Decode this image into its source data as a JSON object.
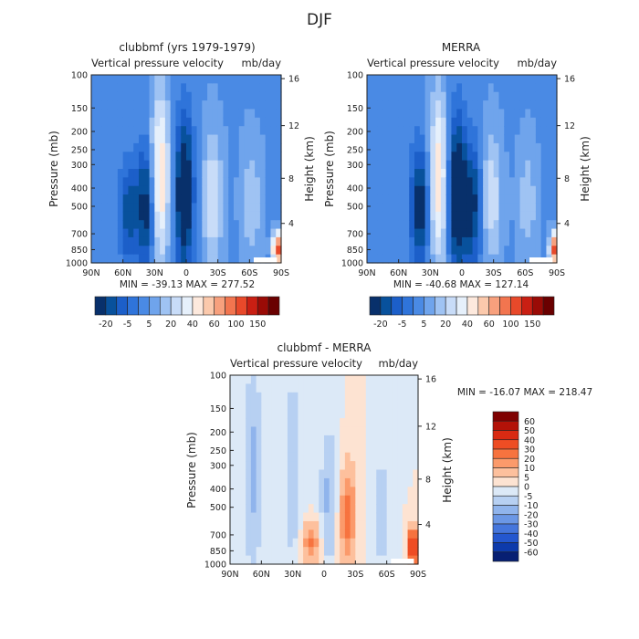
{
  "figure": {
    "title": "DJF"
  },
  "chart_data": [
    {
      "type": "heatmap",
      "id": "model",
      "title": "clubbmf (yrs 1979-1979)",
      "subtitle_left": "Vertical pressure velocity",
      "subtitle_right": "mb/day",
      "ylabel": "Pressure (mb)",
      "y2label": "Height (km)",
      "x_ticks": [
        "90N",
        "60N",
        "30N",
        "0",
        "30S",
        "60S",
        "90S"
      ],
      "x_range": [
        90,
        -90
      ],
      "y_ticks": [
        "100",
        "150",
        "200",
        "250",
        "300",
        "400",
        "500",
        "700",
        "850",
        "1000"
      ],
      "y_scale": "log",
      "y_range": [
        100,
        1000
      ],
      "y2_ticks": [
        "16",
        "12",
        "8",
        "4"
      ],
      "stats": "MIN = -39.13   MAX = 277.52",
      "colorbar": {
        "orientation": "horizontal",
        "labels": [
          "-20",
          "-5",
          "5",
          "20",
          "40",
          "60",
          "100",
          "150"
        ],
        "colors": [
          "#08306b",
          "#08519c",
          "#1c5fc9",
          "#2f74da",
          "#4a8ae4",
          "#6fa4ec",
          "#9fc3f3",
          "#c8dcf8",
          "#e6f0fb",
          "#fde9dd",
          "#fbc9ac",
          "#f7a07d",
          "#f2754f",
          "#e8492a",
          "#c91f13",
          "#9a0b06",
          "#6a0000"
        ]
      },
      "features": [
        {
          "kind": "upward-core",
          "lat": 2,
          "p_top": 180,
          "p_bot": 1000,
          "strength": -1.0
        },
        {
          "kind": "upward-core",
          "lat": 38,
          "p_top": 250,
          "p_bot": 1000,
          "strength": -0.8
        },
        {
          "kind": "upward-core",
          "lat": 55,
          "p_top": 300,
          "p_bot": 1000,
          "strength": -0.55
        },
        {
          "kind": "subsidence",
          "lat": 25,
          "p_top": 140,
          "p_bot": 900,
          "strength": 0.9
        },
        {
          "kind": "subsidence",
          "lat": -25,
          "p_top": 220,
          "p_bot": 900,
          "strength": 0.55
        },
        {
          "kind": "subsidence",
          "lat": -62,
          "p_top": 250,
          "p_bot": 900,
          "strength": 0.35
        },
        {
          "kind": "surface-max",
          "lat": -86,
          "p_top": 700,
          "p_bot": 1000,
          "strength": 1.6
        }
      ]
    },
    {
      "type": "heatmap",
      "id": "obs",
      "title": "MERRA",
      "subtitle_left": "Vertical pressure velocity",
      "subtitle_right": "mb/day",
      "ylabel": "Pressure (mb)",
      "y2label": "Height (km)",
      "x_ticks": [
        "90N",
        "60N",
        "30N",
        "0",
        "30S",
        "60S",
        "90S"
      ],
      "x_range": [
        90,
        -90
      ],
      "y_ticks": [
        "100",
        "150",
        "200",
        "250",
        "300",
        "400",
        "500",
        "700",
        "850",
        "1000"
      ],
      "y_scale": "log",
      "y_range": [
        100,
        1000
      ],
      "y2_ticks": [
        "16",
        "12",
        "8",
        "4"
      ],
      "stats": "MIN = -40.68   MAX = 127.14",
      "colorbar": {
        "orientation": "horizontal",
        "labels": [
          "-20",
          "-5",
          "5",
          "20",
          "40",
          "60",
          "100",
          "150"
        ],
        "colors": [
          "#08306b",
          "#08519c",
          "#1c5fc9",
          "#2f74da",
          "#4a8ae4",
          "#6fa4ec",
          "#9fc3f3",
          "#c8dcf8",
          "#e6f0fb",
          "#fde9dd",
          "#fbc9ac",
          "#f7a07d",
          "#f2754f",
          "#e8492a",
          "#c91f13",
          "#9a0b06",
          "#6a0000"
        ]
      },
      "features": [
        {
          "kind": "upward-core",
          "lat": 5,
          "p_top": 180,
          "p_bot": 1000,
          "strength": -1.0
        },
        {
          "kind": "upward-core",
          "lat": 40,
          "p_top": 250,
          "p_bot": 1000,
          "strength": -0.8
        },
        {
          "kind": "upward-core",
          "lat": -10,
          "p_top": 250,
          "p_bot": 1000,
          "strength": -0.7
        },
        {
          "kind": "subsidence",
          "lat": 22,
          "p_top": 140,
          "p_bot": 900,
          "strength": 0.85
        },
        {
          "kind": "subsidence",
          "lat": -28,
          "p_top": 220,
          "p_bot": 900,
          "strength": 0.5
        },
        {
          "kind": "subsidence",
          "lat": -62,
          "p_top": 250,
          "p_bot": 900,
          "strength": 0.3
        },
        {
          "kind": "surface-max",
          "lat": -87,
          "p_top": 700,
          "p_bot": 1000,
          "strength": 1.4
        }
      ]
    },
    {
      "type": "heatmap",
      "id": "diff",
      "title": "clubbmf - MERRA",
      "subtitle_left": "Vertical pressure velocity",
      "subtitle_right": "mb/day",
      "ylabel": "Pressure (mb)",
      "y2label": "Height (km)",
      "x_ticks": [
        "90N",
        "60N",
        "30N",
        "0",
        "30S",
        "60S",
        "90S"
      ],
      "x_range": [
        90,
        -90
      ],
      "y_ticks": [
        "100",
        "150",
        "200",
        "250",
        "300",
        "400",
        "500",
        "700",
        "850",
        "1000"
      ],
      "y_scale": "log",
      "y_range": [
        100,
        1000
      ],
      "y2_ticks": [
        "16",
        "12",
        "8",
        "4"
      ],
      "stats": "MIN = -16.07   MAX = 218.47",
      "colorbar": {
        "orientation": "vertical",
        "labels": [
          "60",
          "50",
          "40",
          "30",
          "20",
          "10",
          "5",
          "0",
          "-5",
          "-10",
          "-20",
          "-30",
          "-40",
          "-50",
          "-60"
        ],
        "colors": [
          "#7f0000",
          "#b31208",
          "#d92a12",
          "#ee4d24",
          "#f7733f",
          "#fb9a6b",
          "#fdc09d",
          "#fde3d2",
          "#dce9f7",
          "#b7d0f2",
          "#90b4ec",
          "#6b97e5",
          "#4576dc",
          "#2457cf",
          "#0d3aab",
          "#071f73"
        ]
      },
      "features": [
        {
          "kind": "diff-band",
          "lat": 68,
          "p_top": 100,
          "p_bot": 1000,
          "strength": -0.3
        },
        {
          "kind": "diff-band",
          "lat": 30,
          "p_top": 100,
          "p_bot": 1000,
          "strength": -0.25
        },
        {
          "kind": "diff-band",
          "lat": -5,
          "p_top": 200,
          "p_bot": 1000,
          "strength": -0.3
        },
        {
          "kind": "diff-band",
          "lat": -55,
          "p_top": 300,
          "p_bot": 1000,
          "strength": -0.25
        },
        {
          "kind": "diff-band",
          "lat": -22,
          "p_top": 300,
          "p_bot": 1000,
          "strength": 0.45
        },
        {
          "kind": "diff-band",
          "lat": 12,
          "p_top": 600,
          "p_bot": 1000,
          "strength": 0.4
        },
        {
          "kind": "surface-max",
          "lat": -85,
          "p_top": 650,
          "p_bot": 1000,
          "strength": 0.9
        }
      ]
    }
  ]
}
